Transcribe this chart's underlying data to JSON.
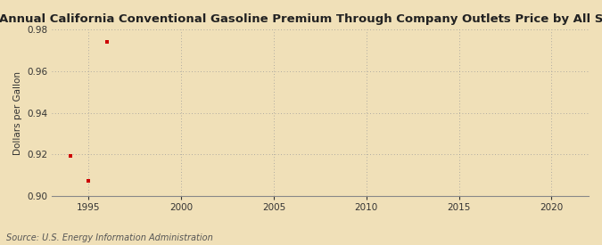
{
  "title": "Annual California Conventional Gasoline Premium Through Company Outlets Price by All Sellers",
  "ylabel": "Dollars per Gallon",
  "source": "Source: U.S. Energy Information Administration",
  "background_color": "#f0e0b8",
  "plot_bg_color": "#f0e0b8",
  "data_points": {
    "x": [
      1994,
      1995,
      1996
    ],
    "y": [
      0.919,
      0.907,
      0.974
    ]
  },
  "marker_color": "#cc0000",
  "marker_size": 3.5,
  "xlim": [
    1993,
    2022
  ],
  "ylim": [
    0.9,
    0.98
  ],
  "xticks": [
    1995,
    2000,
    2005,
    2010,
    2015,
    2020
  ],
  "yticks": [
    0.9,
    0.92,
    0.94,
    0.96,
    0.98
  ],
  "grid_color": "#999999",
  "title_fontsize": 9.5,
  "label_fontsize": 7.5,
  "tick_fontsize": 7.5,
  "source_fontsize": 7
}
